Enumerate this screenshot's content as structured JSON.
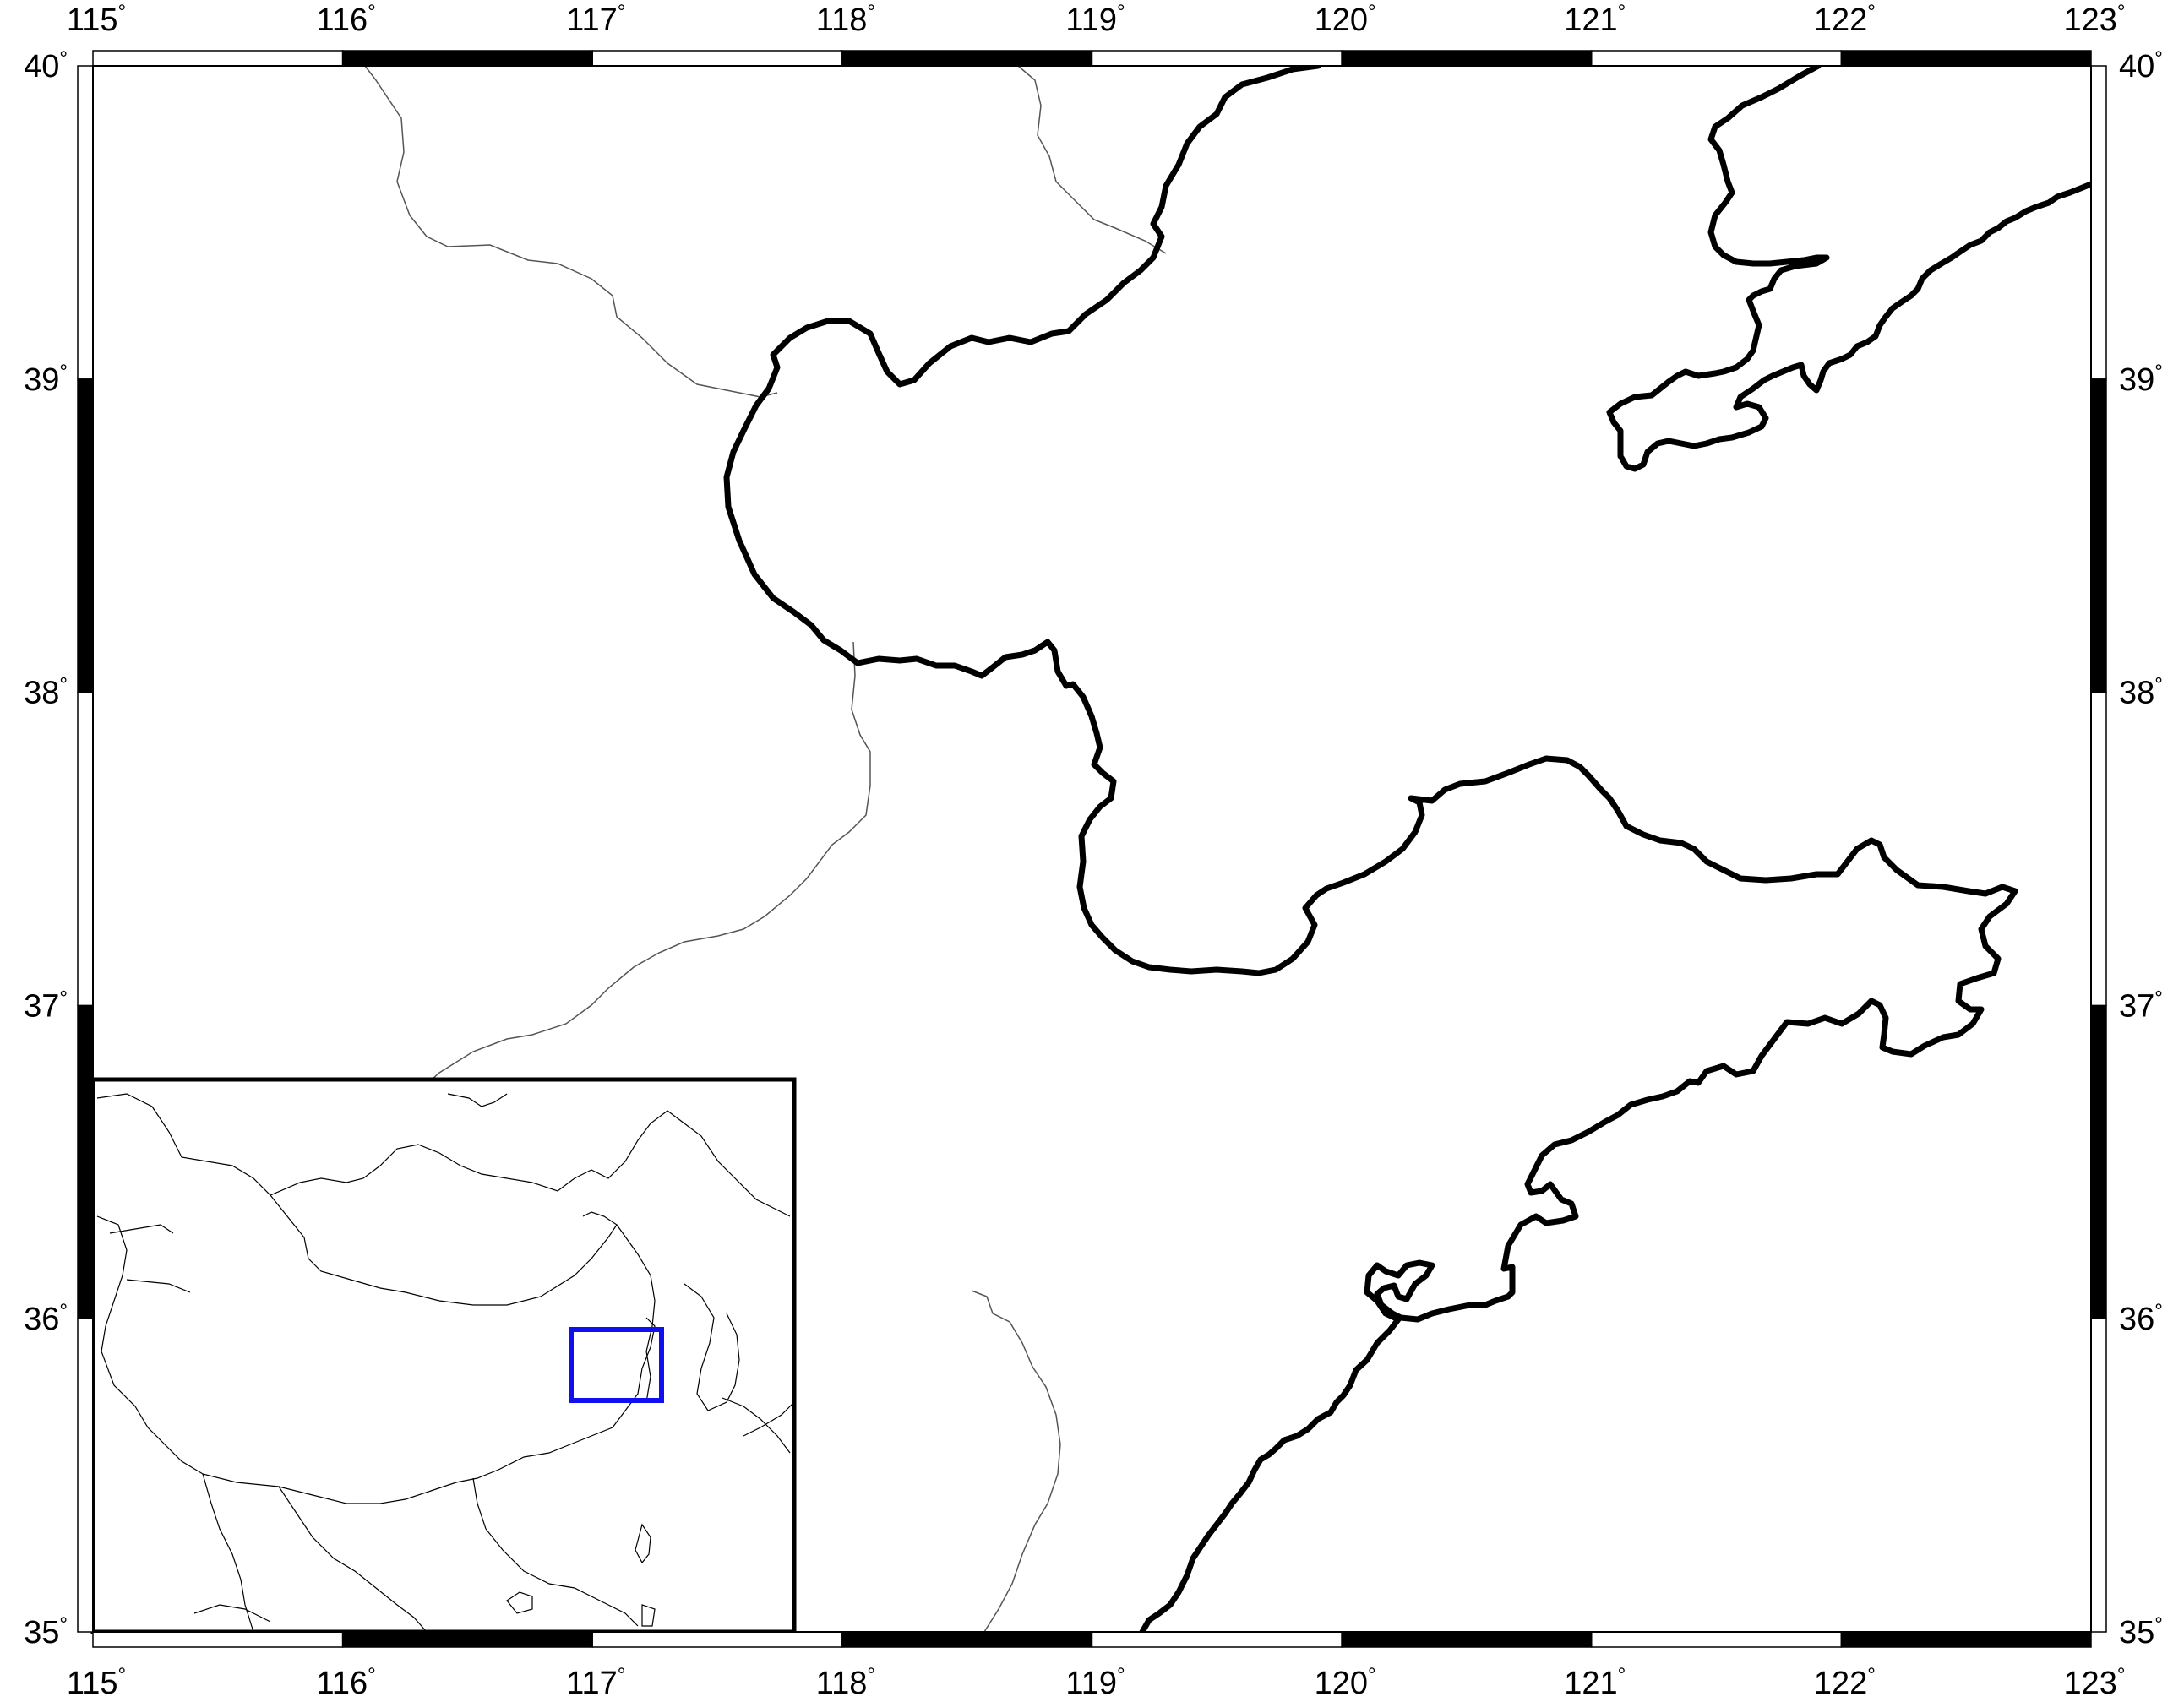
{
  "map": {
    "projection": "linear lon/lat",
    "lon_range": [
      115,
      123
    ],
    "lat_range": [
      35,
      40
    ],
    "frame_style": "fancy black-white alternating",
    "lon_ticks": [
      {
        "value": 115,
        "label": "115"
      },
      {
        "value": 116,
        "label": "116"
      },
      {
        "value": 117,
        "label": "117"
      },
      {
        "value": 118,
        "label": "118"
      },
      {
        "value": 119,
        "label": "119"
      },
      {
        "value": 120,
        "label": "120"
      },
      {
        "value": 121,
        "label": "121"
      },
      {
        "value": 122,
        "label": "122"
      },
      {
        "value": 123,
        "label": "123"
      }
    ],
    "lat_ticks": [
      {
        "value": 35,
        "label": "35"
      },
      {
        "value": 36,
        "label": "36"
      },
      {
        "value": 37,
        "label": "37"
      },
      {
        "value": 38,
        "label": "38"
      },
      {
        "value": 39,
        "label": "39"
      },
      {
        "value": 40,
        "label": "40"
      }
    ],
    "degree_symbol": "°",
    "colors": {
      "coastline": "#000000",
      "political_border": "#555555",
      "frame_dark": "#000000",
      "frame_light": "#ffffff",
      "inset_region_box": "#1010ee"
    },
    "features": [
      "coastline",
      "provincial-borders",
      "inset-overview-map"
    ]
  },
  "inset": {
    "region": "East Asia overview",
    "highlight_box": {
      "lon_range": [
        115,
        123
      ],
      "lat_range": [
        35,
        40
      ]
    }
  }
}
